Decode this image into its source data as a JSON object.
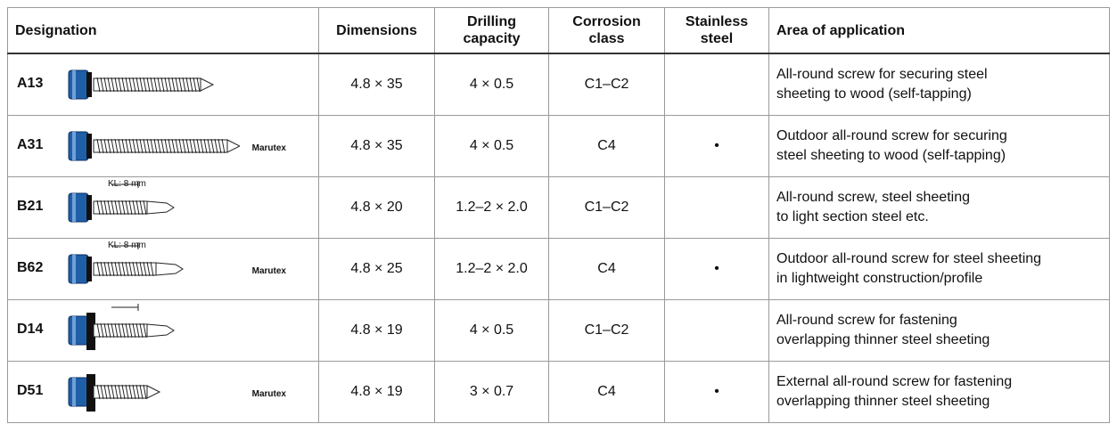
{
  "header": {
    "designation": "Designation",
    "dimensions": "Dimensions",
    "drilling": "Drilling capacity",
    "corrosion": "Corrosion class",
    "stainless": "Stainless steel",
    "application": "Area of application"
  },
  "rows": [
    {
      "code": "A13",
      "dimensions": "4.8 × 35",
      "drilling": "4 × 0.5",
      "corrosion": "C1–C2",
      "application": [
        "All-round screw for securing steel",
        "sheeting to wood (self-tapping)"
      ]
    },
    {
      "code": "A31",
      "brand": "Marutex",
      "dimensions": "4.8 × 35",
      "drilling": "4 × 0.5",
      "corrosion": "C4",
      "stainless": "•",
      "application": [
        "Outdoor all-round screw for securing",
        "steel sheeting to wood (self-tapping)"
      ]
    },
    {
      "code": "B21",
      "note": "KL: 8 mm",
      "dimensions": "4.8 × 20",
      "drilling": "1.2–2 × 2.0",
      "corrosion": "C1–C2",
      "application": [
        "All-round screw, steel sheeting",
        "to light section steel etc."
      ]
    },
    {
      "code": "B62",
      "note": "KL: 8 mm",
      "brand": "Marutex",
      "dimensions": "4.8 × 25",
      "drilling": "1.2–2 × 2.0",
      "corrosion": "C4",
      "stainless": "•",
      "application": [
        "Outdoor all-round screw for steel sheeting",
        "in lightweight construction/profile"
      ]
    },
    {
      "code": "D14",
      "dimensions": "4.8 × 19",
      "drilling": "4 × 0.5",
      "corrosion": "C1–C2",
      "application": [
        "All-round screw for fastening",
        "overlapping thinner steel sheeting"
      ]
    },
    {
      "code": "D51",
      "brand": "Marutex",
      "dimensions": "4.8 × 19",
      "drilling": "3 × 0.7",
      "corrosion": "C4",
      "stainless": "•",
      "application": [
        "External all-round screw for fastening",
        "overlapping thinner steel sheeting"
      ]
    }
  ]
}
